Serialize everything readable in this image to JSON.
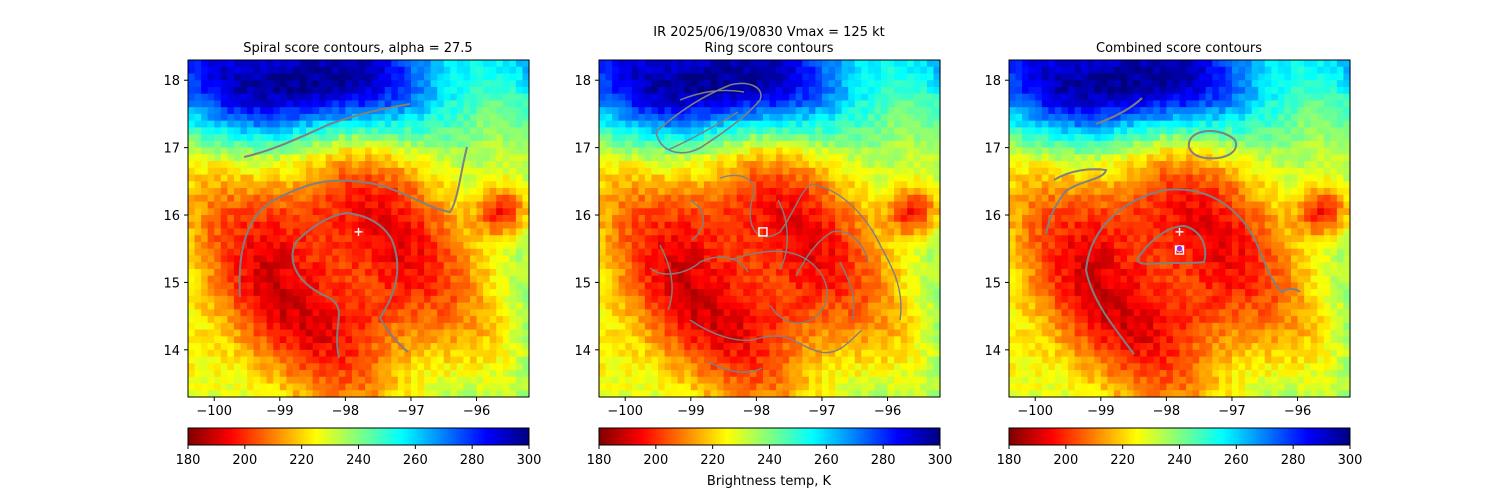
{
  "figure": {
    "suptitle_line1": "IR  2025/06/19/0830    Vmax = 125 kt"
  },
  "colorbar": {
    "range": [
      180,
      300
    ],
    "ticks": [
      180,
      200,
      220,
      240,
      260,
      280,
      300
    ],
    "label": "Brightness temp, K",
    "colormap": "jet_r",
    "colors": [
      "#7f0000",
      "#ff0000",
      "#ff8000",
      "#ffff00",
      "#80ff80",
      "#00ffff",
      "#0080ff",
      "#0000ff",
      "#00007f"
    ]
  },
  "chart_data": [
    {
      "type": "heatmap",
      "title": "Spiral score contours, alpha = 27.5",
      "xlim": [
        -100.4,
        -95.2
      ],
      "ylim": [
        13.3,
        18.3
      ],
      "xticks": [
        -100,
        -99,
        -98,
        -97,
        -96
      ],
      "yticks": [
        14,
        15,
        16,
        17,
        18
      ],
      "xticklabels": [
        "−100",
        "−99",
        "−98",
        "−97",
        "−96"
      ],
      "yticklabels": [
        "14",
        "15",
        "16",
        "17",
        "18"
      ],
      "contour_color": "#808080",
      "markers": [
        {
          "kind": "plus",
          "lon": -97.8,
          "lat": 15.75,
          "color": "#ffffff"
        }
      ]
    },
    {
      "type": "heatmap",
      "title": "Ring score contours",
      "xlim": [
        -100.4,
        -95.2
      ],
      "ylim": [
        13.3,
        18.3
      ],
      "xticks": [
        -100,
        -99,
        -98,
        -97,
        -96
      ],
      "yticks": [
        14,
        15,
        16,
        17,
        18
      ],
      "xticklabels": [
        "−100",
        "−99",
        "−98",
        "−97",
        "−96"
      ],
      "yticklabels": [
        "14",
        "15",
        "16",
        "17",
        "18"
      ],
      "contour_color": "#808080",
      "markers": [
        {
          "kind": "square",
          "lon": -97.9,
          "lat": 15.75,
          "color": "#ffffff"
        }
      ]
    },
    {
      "type": "heatmap",
      "title": "Combined score contours",
      "xlim": [
        -100.4,
        -95.2
      ],
      "ylim": [
        13.3,
        18.3
      ],
      "xticks": [
        -100,
        -99,
        -98,
        -97,
        -96
      ],
      "yticks": [
        14,
        15,
        16,
        17,
        18
      ],
      "xticklabels": [
        "−100",
        "−99",
        "−98",
        "−97",
        "−96"
      ],
      "yticklabels": [
        "14",
        "15",
        "16",
        "17",
        "18"
      ],
      "contour_color": "#808080",
      "markers": [
        {
          "kind": "plus",
          "lon": -97.8,
          "lat": 15.75,
          "color": "#ffffff"
        },
        {
          "kind": "square",
          "lon": -97.8,
          "lat": 15.48,
          "color": "#ffffff"
        },
        {
          "kind": "dot",
          "lon": -97.8,
          "lat": 15.5,
          "color": "#9b30d9"
        }
      ]
    }
  ]
}
